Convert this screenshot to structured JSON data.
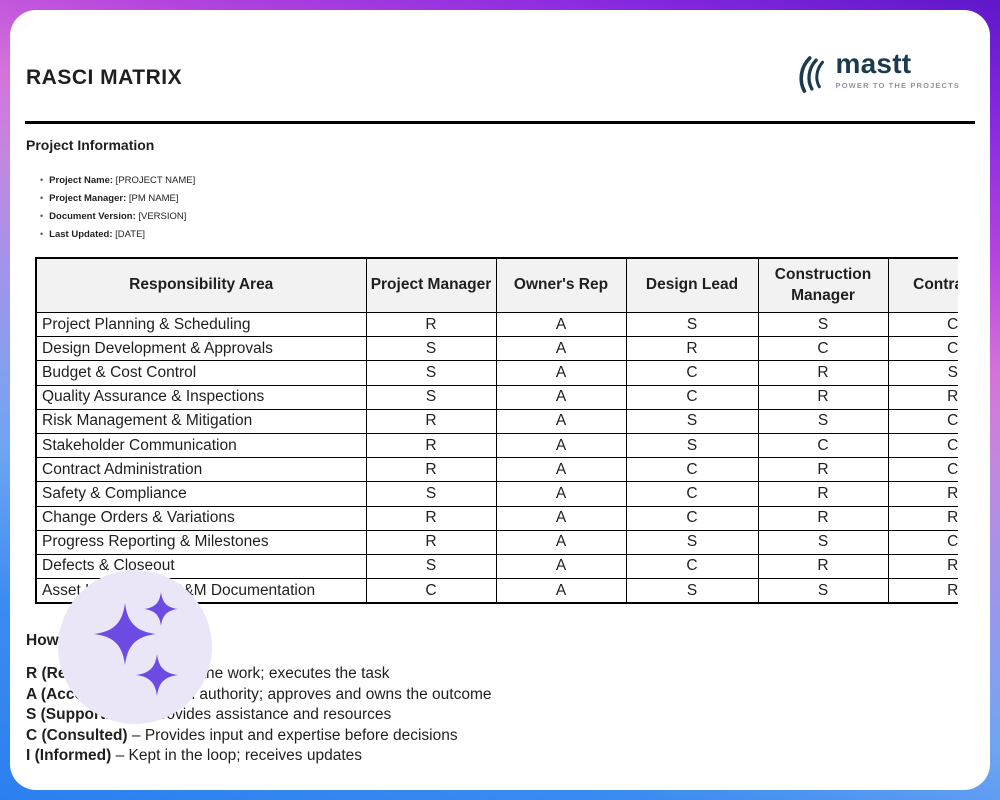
{
  "page": {
    "title": "RASCI MATRIX",
    "logo": {
      "brand": "mastt",
      "tagline": "POWER TO THE PROJECTS"
    },
    "project_info": {
      "heading": "Project Information",
      "items": [
        {
          "label": "Project Name:",
          "value": "[PROJECT NAME]"
        },
        {
          "label": "Project Manager:",
          "value": "[PM NAME]"
        },
        {
          "label": "Document Version:",
          "value": "[VERSION]"
        },
        {
          "label": "Last Updated:",
          "value": "[DATE]"
        }
      ]
    },
    "matrix": {
      "columns": [
        "Responsibility Area",
        "Project Manager",
        "Owner's Rep",
        "Design Lead",
        "Construction Manager",
        "Contractor"
      ],
      "rows": [
        {
          "area": "Project Planning & Scheduling",
          "values": [
            "R",
            "A",
            "S",
            "S",
            "C"
          ]
        },
        {
          "area": "Design Development & Approvals",
          "values": [
            "S",
            "A",
            "R",
            "C",
            "C"
          ]
        },
        {
          "area": "Budget & Cost Control",
          "values": [
            "S",
            "A",
            "C",
            "R",
            "S"
          ]
        },
        {
          "area": "Quality Assurance & Inspections",
          "values": [
            "S",
            "A",
            "C",
            "R",
            "R"
          ]
        },
        {
          "area": "Risk Management & Mitigation",
          "values": [
            "R",
            "A",
            "S",
            "S",
            "C"
          ]
        },
        {
          "area": "Stakeholder Communication",
          "values": [
            "R",
            "A",
            "S",
            "C",
            "C"
          ]
        },
        {
          "area": "Contract Administration",
          "values": [
            "R",
            "A",
            "C",
            "R",
            "C"
          ]
        },
        {
          "area": "Safety & Compliance",
          "values": [
            "S",
            "A",
            "C",
            "R",
            "R"
          ]
        },
        {
          "area": "Change Orders & Variations",
          "values": [
            "R",
            "A",
            "C",
            "R",
            "R"
          ]
        },
        {
          "area": "Progress Reporting & Milestones",
          "values": [
            "R",
            "A",
            "S",
            "S",
            "C"
          ]
        },
        {
          "area": "Defects & Closeout",
          "values": [
            "S",
            "A",
            "C",
            "R",
            "R"
          ]
        },
        {
          "area": "Asset Handover & O&M Documentation",
          "values": [
            "C",
            "A",
            "S",
            "S",
            "R"
          ]
        }
      ]
    },
    "legend": {
      "heading": "How to Read This Matrix:",
      "entries": [
        {
          "key": "R (Responsible)",
          "desc": "– Does the work; executes the task"
        },
        {
          "key": "A (Accountable)",
          "desc": "– Final authority; approves and owns the outcome"
        },
        {
          "key": "S (Supporting)",
          "desc": "– Provides assistance and resources"
        },
        {
          "key": "C (Consulted)",
          "desc": "– Provides input and expertise before decisions"
        },
        {
          "key": "I (Informed)",
          "desc": "– Kept in the loop; receives updates"
        }
      ]
    },
    "colors": {
      "brand_navy": "#1b3a4d",
      "tagline_gray": "#8e97a3",
      "table_header_bg": "#f2f2f2",
      "sparkle_purple": "#6c4be3",
      "badge_lavender": "#eae5f7",
      "border_gradient_top": "#5e17c9",
      "border_gradient_pink": "#d573da",
      "border_gradient_bottom": "#2b80ef"
    }
  }
}
